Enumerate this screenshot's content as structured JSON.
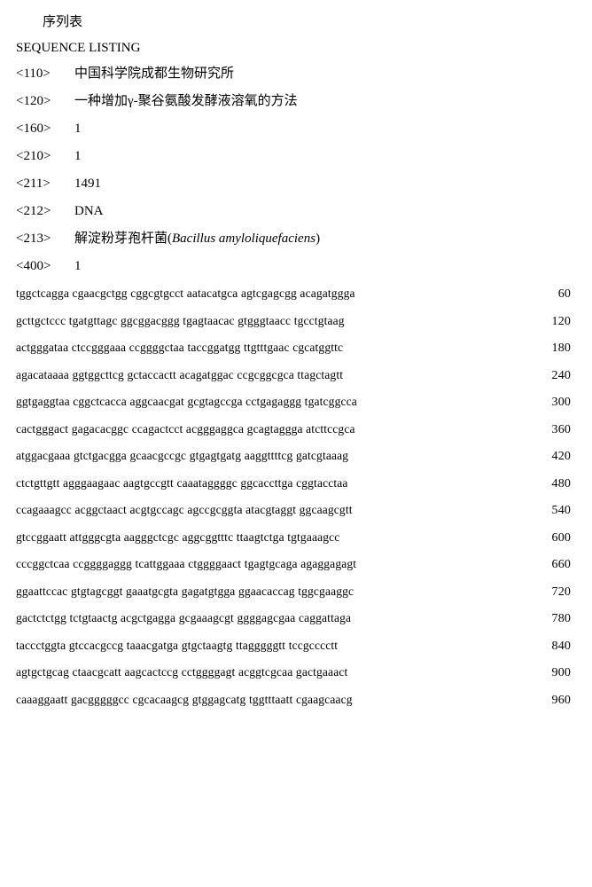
{
  "title": "序列表",
  "header": "SEQUENCE LISTING",
  "meta": [
    {
      "tag": "<110>",
      "val": "中国科学院成都生物研究所"
    },
    {
      "tag": "<120>",
      "val": "一种增加γ-聚谷氨酸发酵液溶氧的方法"
    },
    {
      "tag": "<160>",
      "val": "1"
    },
    {
      "tag": "<210>",
      "val": "1"
    },
    {
      "tag": "<211>",
      "val": "1491"
    },
    {
      "tag": "<212>",
      "val": "DNA"
    },
    {
      "tag": "<213>",
      "val": "解淀粉芽孢杆菌(",
      "italic": "Bacillus amyloliquefaciens",
      "suffix": ")"
    },
    {
      "tag": "<400>",
      "val": "1"
    }
  ],
  "sequence": [
    {
      "seq": "tggctcagga cgaacgctgg cggcgtgcct aatacatgca agtcgagcgg acagatggga",
      "num": "60"
    },
    {
      "seq": "gcttgctccc tgatgttagc ggcggacggg tgagtaacac gtgggtaacc tgcctgtaag",
      "num": "120"
    },
    {
      "seq": "actgggataa ctccgggaaa ccggggctaa taccggatgg ttgtttgaac cgcatggttc",
      "num": "180"
    },
    {
      "seq": "agacataaaa ggtggcttcg gctaccactt acagatggac ccgcggcgca ttagctagtt",
      "num": "240"
    },
    {
      "seq": "ggtgaggtaa cggctcacca aggcaacgat gcgtagccga cctgagaggg tgatcggcca",
      "num": "300"
    },
    {
      "seq": "cactgggact gagacacggc ccagactcct acgggaggca gcagtaggga atcttccgca",
      "num": "360"
    },
    {
      "seq": "atggacgaaa gtctgacgga gcaacgccgc gtgagtgatg aaggttttcg gatcgtaaag",
      "num": "420"
    },
    {
      "seq": "ctctgttgtt agggaagaac aagtgccgtt caaataggggc ggcaccttga cggtacctaa",
      "num": "480"
    },
    {
      "seq": "ccagaaagcc acggctaact acgtgccagc agccgcggta atacgtaggt ggcaagcgtt",
      "num": "540"
    },
    {
      "seq": "gtccggaatt attgggcgta aagggctcgc aggcggtttc ttaagtctga tgtgaaagcc",
      "num": "600"
    },
    {
      "seq": "cccggctcaa ccggggaggg tcattggaaa ctggggaact tgagtgcaga agaggagagt",
      "num": "660"
    },
    {
      "seq": "ggaattccac gtgtagcggt gaaatgcgta gagatgtgga ggaacaccag tggcgaaggc",
      "num": "720"
    },
    {
      "seq": "gactctctgg tctgtaactg acgctgagga gcgaaagcgt ggggagcgaa caggattaga",
      "num": "780"
    },
    {
      "seq": "taccctggta gtccacgccg taaacgatga gtgctaagtg ttagggggtt tccgcccctt",
      "num": "840"
    },
    {
      "seq": "agtgctgcag ctaacgcatt aagcactccg cctggggagt acggtcgcaa gactgaaact",
      "num": "900"
    },
    {
      "seq": "caaaggaatt gacgggggcc cgcacaagcg gtggagcatg tggtttaatt cgaagcaacg",
      "num": "960"
    }
  ]
}
